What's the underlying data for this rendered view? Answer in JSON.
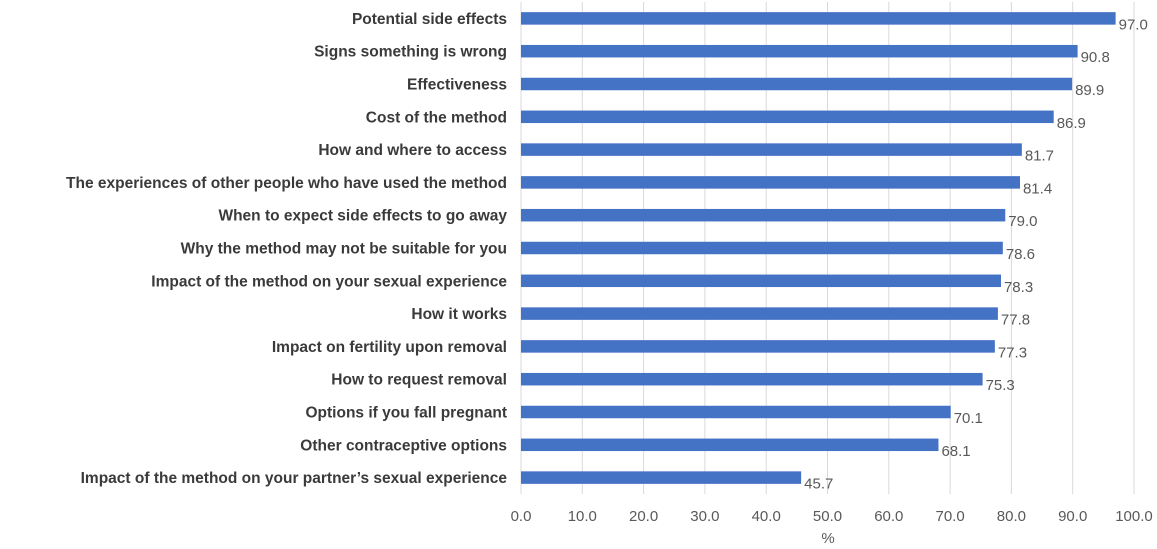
{
  "chart_data": {
    "type": "bar",
    "orientation": "horizontal",
    "categories": [
      "Potential side effects",
      "Signs something is wrong",
      "Effectiveness",
      "Cost of the method",
      "How and where to access",
      "The experiences of other people who have used the method",
      "When to expect side effects to go away",
      "Why the method may not be suitable for you",
      "Impact of the method on your sexual experience",
      "How it works",
      "Impact on fertility upon removal",
      "How to request removal",
      "Options if you fall pregnant",
      "Other contraceptive options",
      "Impact of the method on your partner’s sexual experience"
    ],
    "values": [
      97.0,
      90.8,
      89.9,
      86.9,
      81.7,
      81.4,
      79.0,
      78.6,
      78.3,
      77.8,
      77.3,
      75.3,
      70.1,
      68.1,
      45.7
    ],
    "value_labels": [
      "97.0",
      "90.8",
      "89.9",
      "86.9",
      "81.7",
      "81.4",
      "79.0",
      "78.6",
      "78.3",
      "77.8",
      "77.3",
      "75.3",
      "70.1",
      "68.1",
      "45.7"
    ],
    "xticks": [
      "0.0",
      "10.0",
      "20.0",
      "30.0",
      "40.0",
      "50.0",
      "60.0",
      "70.0",
      "80.0",
      "90.0",
      "100.0"
    ],
    "xlim": [
      0,
      100
    ],
    "xlabel": "%",
    "title": "",
    "grid": true,
    "bar_color": "#4472c4"
  }
}
